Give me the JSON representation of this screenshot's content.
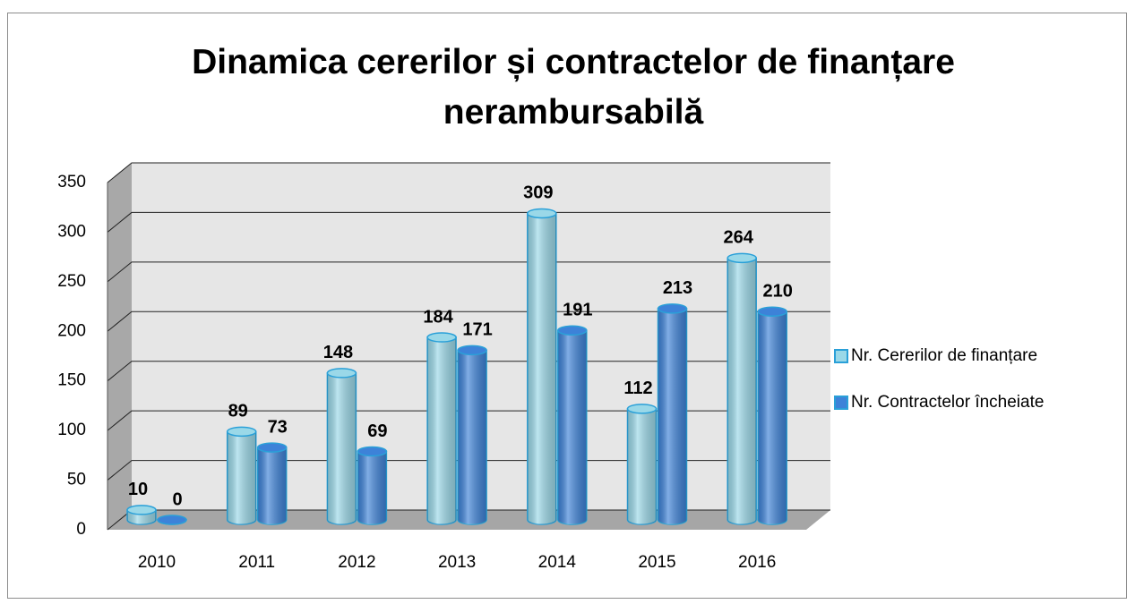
{
  "chart_data": {
    "type": "bar3d",
    "title": "Dinamica cererilor și contractelor de finanțare nerambursabilă",
    "categories": [
      "2010",
      "2011",
      "2012",
      "2013",
      "2014",
      "2015",
      "2016"
    ],
    "series": [
      {
        "name": "Nr. Cererilor de finanțare",
        "color": "#9ad8e8",
        "values": [
          10,
          89,
          148,
          184,
          309,
          112,
          264
        ]
      },
      {
        "name": "Nr. Contractelor încheiate",
        "color": "#3d82d8",
        "values": [
          0,
          73,
          69,
          171,
          191,
          213,
          210
        ]
      }
    ],
    "ylim": [
      0,
      350
    ],
    "yticks": [
      0,
      50,
      100,
      150,
      200,
      250,
      300,
      350
    ],
    "grid": true,
    "legend": "right"
  }
}
